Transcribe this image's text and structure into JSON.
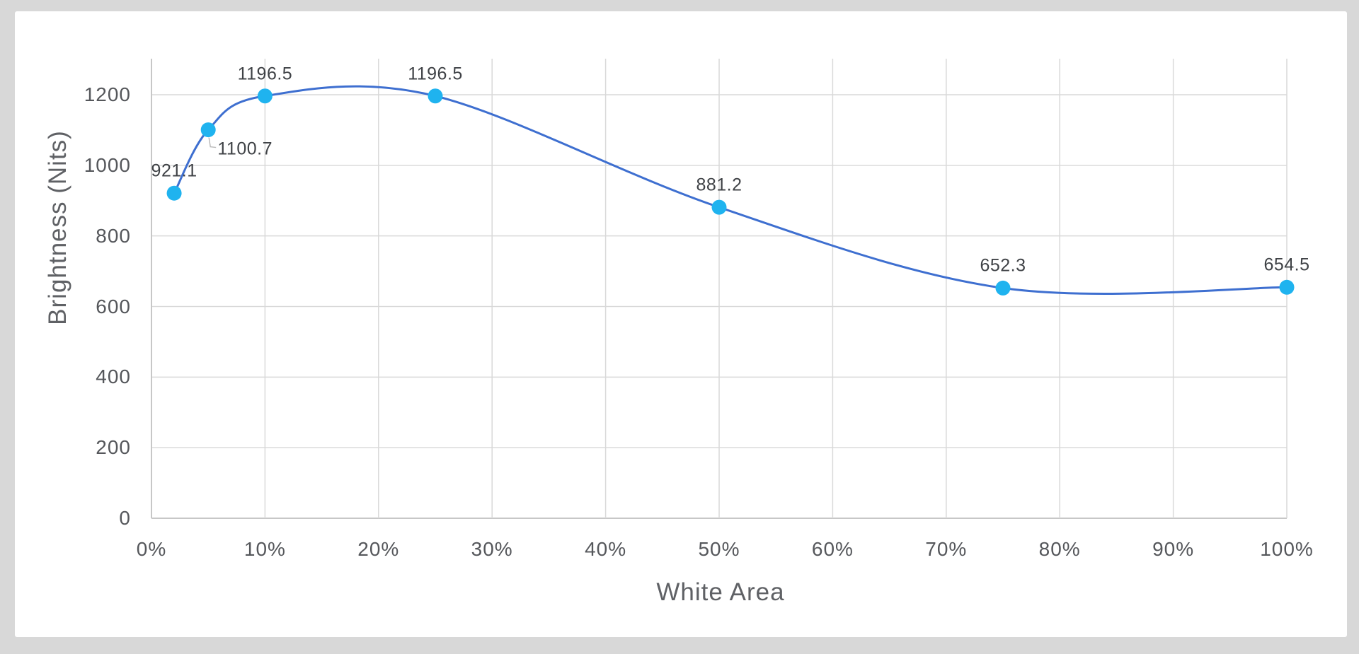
{
  "chart_data": {
    "type": "line",
    "xlabel": "White Area",
    "ylabel": "Brightness (Nits)",
    "x": [
      2,
      5,
      10,
      25,
      50,
      75,
      100
    ],
    "x_unit": "percent",
    "values": [
      921.1,
      1100.7,
      1196.5,
      1196.5,
      881.2,
      652.3,
      654.5
    ],
    "points": [
      {
        "x_pct": 2,
        "value": 921.1,
        "label": "921.1",
        "label_position": "above"
      },
      {
        "x_pct": 5,
        "value": 1100.7,
        "label": "1100.7",
        "label_position": "below-right"
      },
      {
        "x_pct": 10,
        "value": 1196.5,
        "label": "1196.5",
        "label_position": "above"
      },
      {
        "x_pct": 25,
        "value": 1196.5,
        "label": "1196.5",
        "label_position": "above"
      },
      {
        "x_pct": 50,
        "value": 881.2,
        "label": "881.2",
        "label_position": "above"
      },
      {
        "x_pct": 75,
        "value": 652.3,
        "label": "652.3",
        "label_position": "above"
      },
      {
        "x_pct": 100,
        "value": 654.5,
        "label": "654.5",
        "label_position": "above"
      }
    ],
    "x_tick_values": [
      0,
      10,
      20,
      30,
      40,
      50,
      60,
      70,
      80,
      90,
      100
    ],
    "x_tick_labels": [
      "0%",
      "10%",
      "20%",
      "30%",
      "40%",
      "50%",
      "60%",
      "70%",
      "80%",
      "90%",
      "100%"
    ],
    "y_tick_values": [
      0,
      200,
      400,
      600,
      800,
      1000,
      1200
    ],
    "y_tick_labels": [
      "0",
      "200",
      "400",
      "600",
      "800",
      "1000",
      "1200"
    ],
    "xlim": [
      0,
      100
    ],
    "ylim": [
      0,
      1300
    ],
    "grid": true,
    "legend": false,
    "line_style": "smooth-spline",
    "colors": {
      "line": "#3e6fd0",
      "marker": "#1fb3ef",
      "grid": "#d9d9d9",
      "axis": "#c7c7c7",
      "tick_text": "#55575b",
      "axis_title_text": "#5f6165",
      "data_label_text": "#3f4246",
      "leader": "#bbbbbb",
      "card_bg": "#ffffff",
      "page_bg": "#d8d8d8"
    }
  }
}
